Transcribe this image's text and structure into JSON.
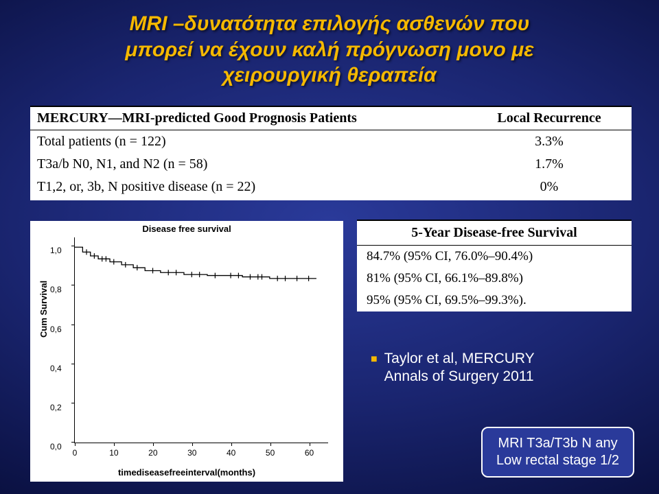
{
  "title": {
    "line1": "MRI –δυνατότητα επιλογής ασθενών που",
    "line2": "μπορεί να έχουν καλή πρόγνωση μονο με",
    "line3": "χειρουργική θεραπεία",
    "color": "#f5b800"
  },
  "table1": {
    "header_left": "MERCURY—MRI-predicted Good Prognosis Patients",
    "header_right": "Local Recurrence",
    "rows": [
      {
        "label": "Total patients (n = 122)",
        "val": "3.3%"
      },
      {
        "label": "T3a/b N0, N1, and N2 (n = 58)",
        "val": "1.7%"
      },
      {
        "label": "T1,2, or, 3b, N positive disease (n = 22)",
        "val": "0%"
      }
    ]
  },
  "table2": {
    "header": "5-Year Disease-free Survival",
    "rows": [
      "84.7% (95% CI, 76.0%–90.4%)",
      "81% (95% CI, 66.1%–89.8%)",
      "95% (95% CI, 69.5%–99.3%)"
    ]
  },
  "citation": {
    "line1": "Taylor et al, MERCURY",
    "line2": "Annals of Surgery 2011"
  },
  "badge": {
    "line1": "MRI T3a/T3b N any",
    "line2": "Low rectal stage 1/2"
  },
  "chart": {
    "type": "kaplan-meier",
    "title": "Disease free survival",
    "ylabel": "Cum Survival",
    "xlabel": "timediseasefreeinterval(months)",
    "background_color": "#ffffff",
    "line_color": "#000000",
    "line_width": 1.3,
    "xlim": [
      0,
      65
    ],
    "ylim": [
      0,
      1.05
    ],
    "xticks": [
      0,
      10,
      20,
      30,
      40,
      50,
      60
    ],
    "yticks": [
      0.0,
      0.2,
      0.4,
      0.6,
      0.8,
      1.0
    ],
    "ytick_labels": [
      "0,0",
      "0,2",
      "0,4",
      "0,6",
      "0,8",
      "1,0"
    ],
    "title_fontsize": 13,
    "label_fontsize": 13,
    "tick_fontsize": 12,
    "survival_points": [
      [
        0,
        1.0
      ],
      [
        2,
        1.0
      ],
      [
        2,
        0.975
      ],
      [
        4,
        0.975
      ],
      [
        4,
        0.955
      ],
      [
        6,
        0.955
      ],
      [
        6,
        0.94
      ],
      [
        9,
        0.94
      ],
      [
        9,
        0.925
      ],
      [
        12,
        0.925
      ],
      [
        12,
        0.91
      ],
      [
        15,
        0.91
      ],
      [
        15,
        0.895
      ],
      [
        18,
        0.895
      ],
      [
        18,
        0.88
      ],
      [
        22,
        0.88
      ],
      [
        22,
        0.87
      ],
      [
        28,
        0.87
      ],
      [
        28,
        0.86
      ],
      [
        34,
        0.86
      ],
      [
        34,
        0.855
      ],
      [
        38,
        0.855
      ],
      [
        43,
        0.855
      ],
      [
        43,
        0.848
      ],
      [
        50,
        0.848
      ],
      [
        50,
        0.84
      ],
      [
        56,
        0.84
      ],
      [
        62,
        0.84
      ]
    ],
    "censor_ticks": [
      3,
      5,
      7,
      8,
      10,
      13,
      16,
      20,
      24,
      26,
      30,
      32,
      36,
      40,
      42,
      45,
      47,
      48,
      52,
      54,
      57,
      60
    ]
  }
}
